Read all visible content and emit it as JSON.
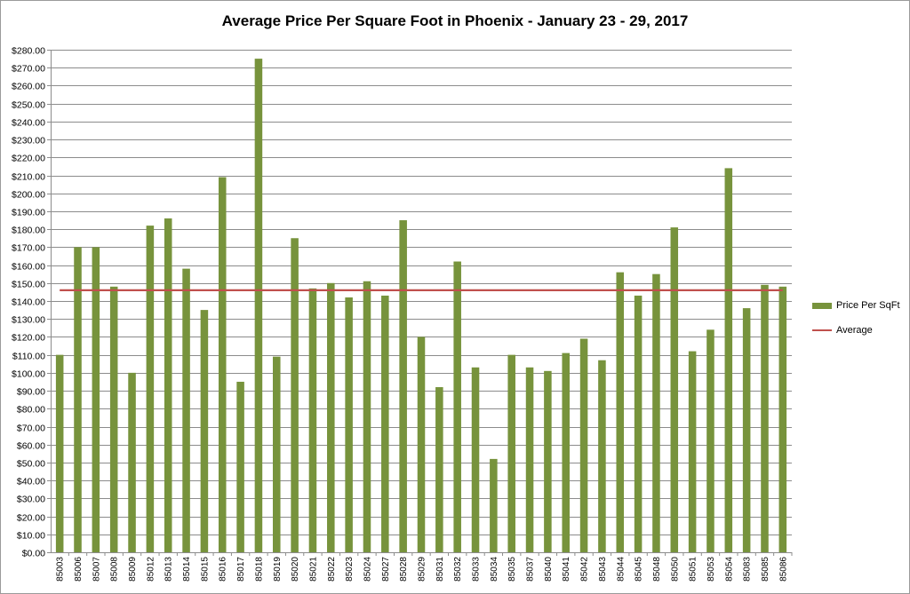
{
  "chart_data": {
    "type": "bar",
    "title": "Average Price Per Square Foot in Phoenix - January 23 - 29, 2017",
    "xlabel": "",
    "ylabel": "",
    "ylim": [
      0,
      280
    ],
    "ytick_step": 10,
    "ytick_prefix": "$",
    "grid": true,
    "legend_position": "right",
    "categories": [
      "85003",
      "85006",
      "85007",
      "85008",
      "85009",
      "85012",
      "85013",
      "85014",
      "85015",
      "85016",
      "85017",
      "85018",
      "85019",
      "85020",
      "85021",
      "85022",
      "85023",
      "85024",
      "85027",
      "85028",
      "85029",
      "85031",
      "85032",
      "85033",
      "85034",
      "85035",
      "85037",
      "85040",
      "85041",
      "85042",
      "85043",
      "85044",
      "85045",
      "85048",
      "85050",
      "85051",
      "85053",
      "85054",
      "85083",
      "85085",
      "85086"
    ],
    "series": [
      {
        "name": "Price Per SqFt",
        "type": "bar",
        "color": "#77933c",
        "values": [
          110,
          170,
          170,
          148,
          100,
          182,
          186,
          158,
          135,
          209,
          95,
          275,
          109,
          175,
          147,
          150,
          142,
          151,
          143,
          185,
          120,
          92,
          162,
          103,
          52,
          110,
          103,
          101,
          111,
          119,
          107,
          156,
          143,
          155,
          181,
          112,
          124,
          214,
          136,
          149,
          148
        ]
      },
      {
        "name": "Average",
        "type": "line",
        "color": "#c0504d",
        "value": 146
      }
    ]
  }
}
